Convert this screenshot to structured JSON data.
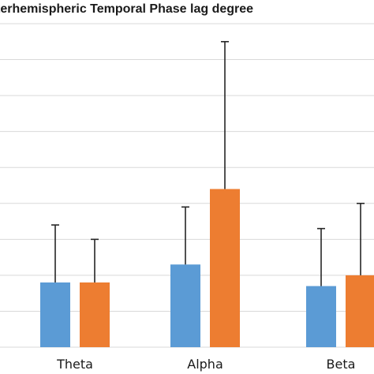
{
  "chart_data": {
    "type": "bar",
    "title": "terhemispheric Temporal Phase lag degree",
    "categories": [
      "Theta",
      "Alpha",
      "Beta"
    ],
    "series": [
      {
        "values": [
          1.8,
          2.3,
          1.7
        ],
        "errors": [
          1.6,
          1.6,
          1.6
        ],
        "color": "#5b9bd5"
      },
      {
        "values": [
          1.8,
          4.4,
          2.0
        ],
        "errors": [
          1.2,
          4.1,
          2.0
        ],
        "color": "#ed7d31"
      }
    ],
    "ylim": [
      0,
      9
    ],
    "grid": true,
    "legend": "none"
  }
}
